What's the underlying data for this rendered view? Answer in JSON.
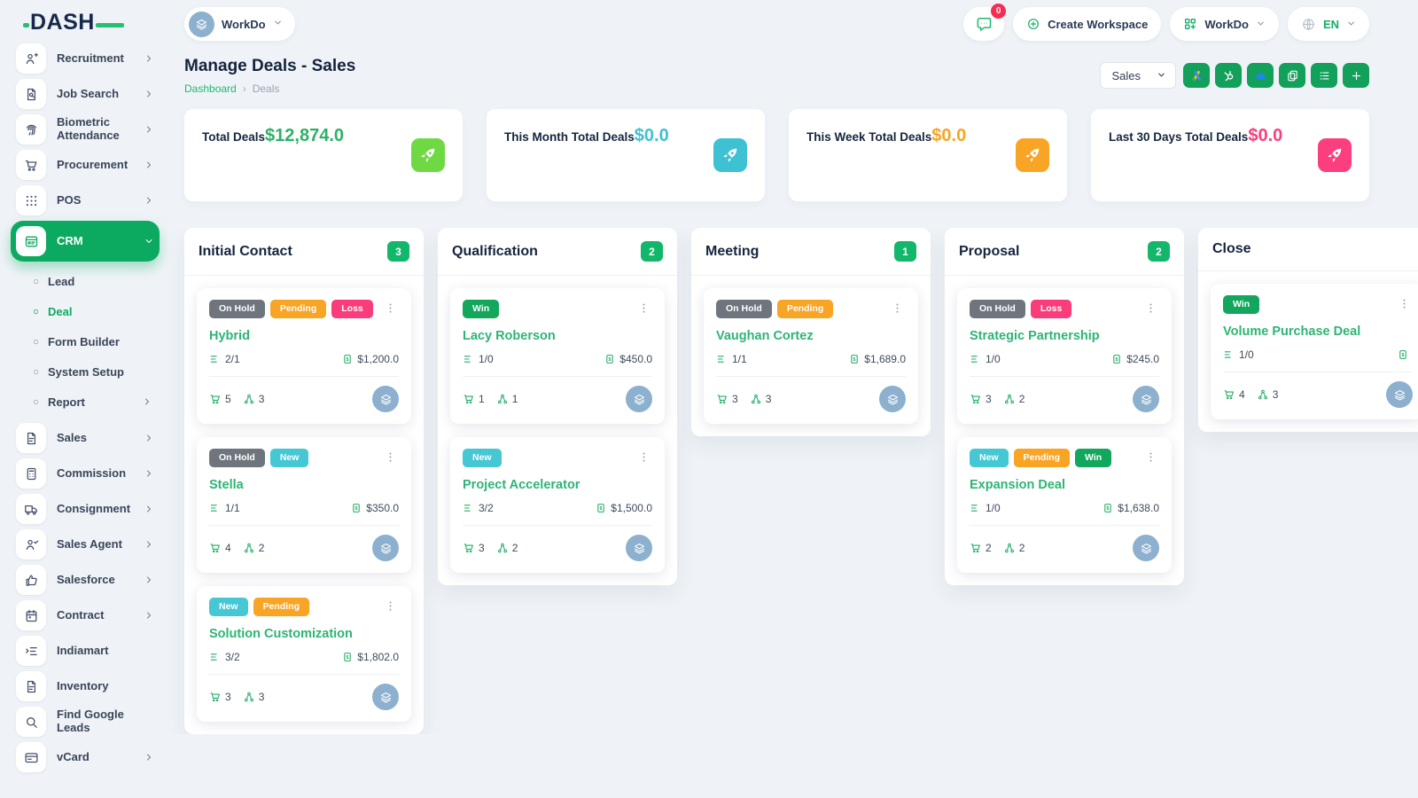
{
  "brand": {
    "name": "DASH"
  },
  "topbar": {
    "workspace": "WorkDo",
    "messages_badge": "0",
    "create_workspace": "Create Workspace",
    "app_menu": "WorkDo",
    "language": "EN"
  },
  "page": {
    "title": "Manage Deals - Sales",
    "breadcrumb": {
      "home": "Dashboard",
      "current": "Deals"
    }
  },
  "toolbar": {
    "pipeline": "Sales",
    "buttons": [
      {
        "name": "google-ads-button",
        "icon": "google-ads"
      },
      {
        "name": "hubspot-button",
        "icon": "hubspot"
      },
      {
        "name": "cloud-import-button",
        "icon": "cloud"
      },
      {
        "name": "duplicate-button",
        "icon": "copy"
      },
      {
        "name": "list-view-button",
        "icon": "list"
      },
      {
        "name": "add-deal-button",
        "icon": "plus"
      }
    ]
  },
  "stats": [
    {
      "label": "Total Deals",
      "value": "$12,874.0",
      "color": "#6fd943",
      "value_color": "#2eb167"
    },
    {
      "label": "This Month Total Deals",
      "value": "$0.0",
      "color": "#3ec1d3",
      "value_color": "#3ec1d3"
    },
    {
      "label": "This Week Total Deals",
      "value": "$0.0",
      "color": "#f8a425",
      "value_color": "#f8a425"
    },
    {
      "label": "Last 30 Days Total Deals",
      "value": "$0.0",
      "color": "#fb3f7e",
      "value_color": "#fb3f7e"
    }
  ],
  "sidebar": {
    "items": [
      {
        "label": "Recruitment",
        "icon": "user-plus",
        "chevron": "right"
      },
      {
        "label": "Job Search",
        "icon": "doc-search",
        "chevron": "right"
      },
      {
        "label": "Biometric Attendance",
        "icon": "fingerprint",
        "chevron": "right"
      },
      {
        "label": "Procurement",
        "icon": "cart",
        "chevron": "right"
      },
      {
        "label": "POS",
        "icon": "grid-dots",
        "chevron": "right"
      },
      {
        "label": "CRM",
        "icon": "crm",
        "chevron": "down",
        "active": true,
        "children": [
          {
            "label": "Lead"
          },
          {
            "label": "Deal",
            "active": true
          },
          {
            "label": "Form Builder"
          },
          {
            "label": "System Setup"
          },
          {
            "label": "Report",
            "chevron": "right"
          }
        ]
      },
      {
        "label": "Sales",
        "icon": "file",
        "chevron": "right"
      },
      {
        "label": "Commission",
        "icon": "calculator",
        "chevron": "right"
      },
      {
        "label": "Consignment",
        "icon": "truck",
        "chevron": "right"
      },
      {
        "label": "Sales Agent",
        "icon": "user-check",
        "chevron": "right"
      },
      {
        "label": "Salesforce",
        "icon": "thumbs-up",
        "chevron": "right"
      },
      {
        "label": "Contract",
        "icon": "calendar",
        "chevron": "right"
      },
      {
        "label": "Indiamart",
        "icon": "list-arrow"
      },
      {
        "label": "Inventory",
        "icon": "file"
      },
      {
        "label": "Find Google Leads",
        "icon": "search"
      },
      {
        "label": "vCard",
        "icon": "id-card",
        "chevron": "right"
      }
    ]
  },
  "board": {
    "columns": [
      {
        "name": "Initial Contact",
        "count": "3",
        "cards": [
          {
            "badges": [
              {
                "label": "On Hold",
                "color": "#6e757d"
              },
              {
                "label": "Pending",
                "color": "#f8a425"
              },
              {
                "label": "Loss",
                "color": "#fb3c7a"
              }
            ],
            "title": "Hybrid",
            "tasks": "2/1",
            "amount": "$1,200.0",
            "products": "5",
            "users": "3"
          },
          {
            "badges": [
              {
                "label": "On Hold",
                "color": "#6e757d"
              },
              {
                "label": "New",
                "color": "#45c8d4"
              }
            ],
            "title": "Stella",
            "tasks": "1/1",
            "amount": "$350.0",
            "products": "4",
            "users": "2"
          },
          {
            "badges": [
              {
                "label": "New",
                "color": "#45c8d4"
              },
              {
                "label": "Pending",
                "color": "#f8a425"
              }
            ],
            "title": "Solution Customization",
            "tasks": "3/2",
            "amount": "$1,802.0",
            "products": "3",
            "users": "3"
          }
        ]
      },
      {
        "name": "Qualification",
        "count": "2",
        "cards": [
          {
            "badges": [
              {
                "label": "Win",
                "color": "#12a75c"
              }
            ],
            "title": "Lacy Roberson",
            "tasks": "1/0",
            "amount": "$450.0",
            "products": "1",
            "users": "1"
          },
          {
            "badges": [
              {
                "label": "New",
                "color": "#45c8d4"
              }
            ],
            "title": "Project Accelerator",
            "tasks": "3/2",
            "amount": "$1,500.0",
            "products": "3",
            "users": "2"
          }
        ]
      },
      {
        "name": "Meeting",
        "count": "1",
        "cards": [
          {
            "badges": [
              {
                "label": "On Hold",
                "color": "#6e757d"
              },
              {
                "label": "Pending",
                "color": "#f8a425"
              }
            ],
            "title": "Vaughan Cortez",
            "tasks": "1/1",
            "amount": "$1,689.0",
            "products": "3",
            "users": "3"
          }
        ]
      },
      {
        "name": "Proposal",
        "count": "2",
        "cards": [
          {
            "badges": [
              {
                "label": "On Hold",
                "color": "#6e757d"
              },
              {
                "label": "Loss",
                "color": "#fb3c7a"
              }
            ],
            "title": "Strategic Partnership",
            "tasks": "1/0",
            "amount": "$245.0",
            "products": "3",
            "users": "2"
          },
          {
            "badges": [
              {
                "label": "New",
                "color": "#45c8d4"
              },
              {
                "label": "Pending",
                "color": "#f8a425"
              },
              {
                "label": "Win",
                "color": "#12a75c"
              }
            ],
            "title": "Expansion Deal",
            "tasks": "1/0",
            "amount": "$1,638.0",
            "products": "2",
            "users": "2"
          }
        ]
      },
      {
        "name": "Close",
        "count": null,
        "cards": [
          {
            "badges": [
              {
                "label": "Win",
                "color": "#12a75c"
              }
            ],
            "title": "Volume Purchase Deal",
            "tasks": "1/0",
            "amount": "",
            "products": "4",
            "users": "3"
          }
        ]
      }
    ]
  },
  "theme": {
    "accent_green": "#0caa60",
    "badge_count_green": "#12b76a",
    "message_badge_red": "#f62d51",
    "avatar_blue": "#8cb0ce"
  }
}
